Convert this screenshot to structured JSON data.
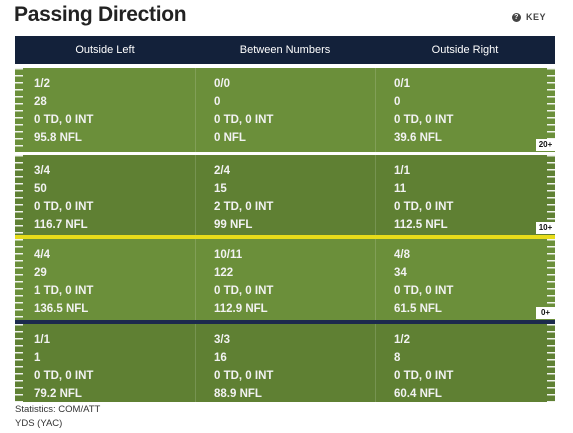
{
  "header": {
    "title": "Passing Direction",
    "key": "KEY"
  },
  "table": {
    "columns": [
      "Outside Left",
      "Between Numbers",
      "Outside Right"
    ],
    "rows": [
      [
        [
          "1/2",
          "28",
          "0 TD, 0 INT",
          "95.8 NFL"
        ],
        [
          "0/0",
          "0",
          "0 TD, 0 INT",
          "0 NFL"
        ],
        [
          "0/1",
          "0",
          "0 TD, 0 INT",
          "39.6 NFL"
        ]
      ],
      [
        [
          "3/4",
          "50",
          "0 TD, 0 INT",
          "116.7 NFL"
        ],
        [
          "2/4",
          "15",
          "2 TD, 0 INT",
          "99 NFL"
        ],
        [
          "1/1",
          "11",
          "0 TD, 0 INT",
          "112.5 NFL"
        ]
      ],
      [
        [
          "4/4",
          "29",
          "1 TD, 0 INT",
          "136.5 NFL"
        ],
        [
          "10/11",
          "122",
          "0 TD, 0 INT",
          "112.9 NFL"
        ],
        [
          "4/8",
          "34",
          "0 TD, 0 INT",
          "61.5 NFL"
        ]
      ],
      [
        [
          "1/1",
          "1",
          "0 TD, 0 INT",
          "79.2 NFL"
        ],
        [
          "3/3",
          "16",
          "0 TD, 0 INT",
          "88.9 NFL"
        ],
        [
          "1/2",
          "8",
          "0 TD, 0 INT",
          "60.4 NFL"
        ]
      ]
    ],
    "zone_labels": [
      "20+",
      "10+",
      "0+"
    ]
  },
  "footer": [
    "Statistics: COM/ATT",
    "YDS (YAC)"
  ]
}
